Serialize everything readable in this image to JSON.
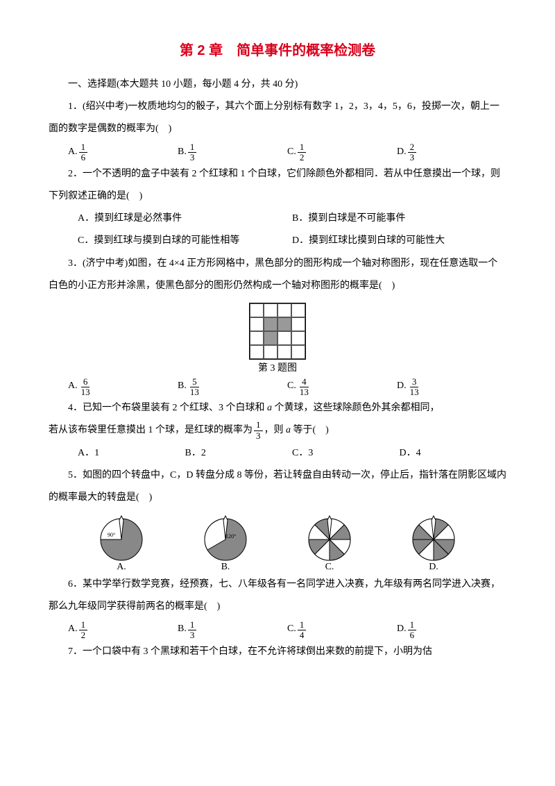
{
  "title": "第 2 章　简单事件的概率检测卷",
  "section1": "一、选择题(本大题共 10 小题，每小题 4 分，共 40 分)",
  "q1": {
    "text": "1．(绍兴中考)一枚质地均匀的骰子，其六个面上分别标有数字 1，2，3，4，5，6，投掷一次，朝上一面的数字是偶数的概率为(　)",
    "opts": {
      "a": {
        "n": "1",
        "d": "6"
      },
      "b": {
        "n": "1",
        "d": "3"
      },
      "c": {
        "n": "1",
        "d": "2"
      },
      "d": {
        "n": "2",
        "d": "3"
      }
    },
    "labels": {
      "a": "A.",
      "b": "B.",
      "c": "C.",
      "d": "D."
    }
  },
  "q2": {
    "text": "2．一个不透明的盒子中装有 2 个红球和 1 个白球，它们除颜色外都相同．若从中任意摸出一个球，则下列叙述正确的是(　)",
    "a": "A．摸到红球是必然事件",
    "b": "B．摸到白球是不可能事件",
    "c": "C．摸到红球与摸到白球的可能性相等",
    "d": "D．摸到红球比摸到白球的可能性大"
  },
  "q3": {
    "text": "3．(济宁中考)如图，在 4×4 正方形网格中，黑色部分的图形构成一个轴对称图形，现在任意选取一个白色的小正方形并涂黑，使黑色部分的图形仍然构成一个轴对称图形的概率是(　)",
    "caption": "第 3 题图",
    "opts": {
      "a": {
        "n": "6",
        "d": "13"
      },
      "b": {
        "n": "5",
        "d": "13"
      },
      "c": {
        "n": "4",
        "d": "13"
      },
      "d": {
        "n": "3",
        "d": "13"
      }
    },
    "labels": {
      "a": "A.",
      "b": "B.",
      "c": "C.",
      "d": "D."
    },
    "fill": [
      5,
      6,
      9
    ]
  },
  "q4": {
    "p1": "4．已知一个布袋里装有 2 个红球、3 个白球和 ",
    "ivar": "a",
    "p2": " 个黄球，这些球除颜色外其余都相同，",
    "p3": "若从该布袋里任意摸出 1 个球，是红球的概率为",
    "frac": {
      "n": "1",
      "d": "3"
    },
    "p4": "，则 ",
    "p5": " 等于(　)",
    "a": "A．1",
    "b": "B．2",
    "c": "C．3",
    "d": "D．4"
  },
  "q5": {
    "text": "5．如图的四个转盘中，C，D 转盘分成 8 等份，若让转盘自由转动一次，停止后，指针落在阴影区域内的概率最大的转盘是(　)",
    "labels": {
      "a": "A.",
      "b": "B.",
      "c": "C.",
      "d": "D."
    },
    "deg90": "90°",
    "deg120": "120°",
    "fill": "#888"
  },
  "q6": {
    "text": "6．某中学举行数学竞赛，经预赛，七、八年级各有一名同学进入决赛，九年级有两名同学进入决赛，那么九年级同学获得前两名的概率是(　)",
    "opts": {
      "a": {
        "n": "1",
        "d": "2"
      },
      "b": {
        "n": "1",
        "d": "3"
      },
      "c": {
        "n": "1",
        "d": "4"
      },
      "d": {
        "n": "1",
        "d": "6"
      }
    },
    "labels": {
      "a": "A.",
      "b": "B.",
      "c": "C.",
      "d": "D."
    }
  },
  "q7": {
    "text": "7．一个口袋中有 3 个黑球和若干个白球，在不允许将球倒出来数的前提下，小明为估"
  }
}
